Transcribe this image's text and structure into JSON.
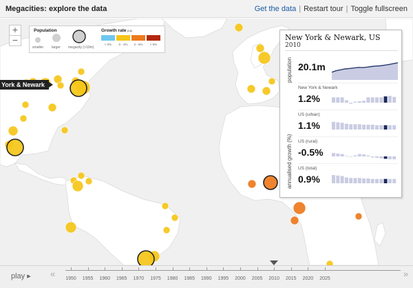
{
  "header": {
    "title": "Megacities: explore the data",
    "links": {
      "get_data": "Get the data",
      "restart": "Restart tour",
      "fullscreen": "Toggle fullscreen"
    },
    "separator": "|"
  },
  "map": {
    "zoom_in": "+",
    "zoom_out": "−",
    "city_tag": "York & Newark",
    "legend": {
      "population_title": "Population",
      "population_labels": [
        "smaller",
        "larger",
        "megacity (>10m)"
      ],
      "growth_title": "Growth rate",
      "growth_unit": "p.a.",
      "growth_bins": [
        {
          "label": "< 0%",
          "color": "#6cc7f0"
        },
        {
          "label": "0 - 3%",
          "color": "#f5c518"
        },
        {
          "label": "3 - 6%",
          "color": "#ed7a1c"
        },
        {
          "label": "> 6%",
          "color": "#b4270e"
        }
      ]
    },
    "cities": [
      {
        "x": 38,
        "y": 121,
        "r": 6,
        "c": "#f5c518"
      },
      {
        "x": 48,
        "y": 119,
        "r": 6,
        "c": "#f5c518"
      },
      {
        "x": 66,
        "y": 121,
        "r": 8,
        "c": "#f5c518"
      },
      {
        "x": 84,
        "y": 115,
        "r": 6,
        "c": "#f5c518"
      },
      {
        "x": 88,
        "y": 124,
        "r": 5,
        "c": "#f5c518"
      },
      {
        "x": 110,
        "y": 118,
        "r": 6,
        "c": "#f5c518"
      },
      {
        "x": 118,
        "y": 104,
        "r": 5,
        "c": "#f5c518"
      },
      {
        "x": 121,
        "y": 127,
        "r": 10,
        "c": "#f5c518"
      },
      {
        "x": 114,
        "y": 128,
        "r": 12,
        "c": "#f5c518",
        "mega": true
      },
      {
        "x": 76,
        "y": 156,
        "r": 6,
        "c": "#f5c518"
      },
      {
        "x": 37,
        "y": 152,
        "r": 5,
        "c": "#f5c518"
      },
      {
        "x": 34,
        "y": 172,
        "r": 5,
        "c": "#f5c518"
      },
      {
        "x": 19,
        "y": 190,
        "r": 7,
        "c": "#f5c518"
      },
      {
        "x": 13,
        "y": 210,
        "r": 6,
        "c": "#f5c518"
      },
      {
        "x": 22,
        "y": 214,
        "r": 12,
        "c": "#f5c518",
        "mega": true
      },
      {
        "x": 94,
        "y": 189,
        "r": 5,
        "c": "#f5c518"
      },
      {
        "x": 118,
        "y": 255,
        "r": 5,
        "c": "#f5c518"
      },
      {
        "x": 107,
        "y": 262,
        "r": 5,
        "c": "#f5c518"
      },
      {
        "x": 129,
        "y": 263,
        "r": 5,
        "c": "#f5c518"
      },
      {
        "x": 113,
        "y": 270,
        "r": 8,
        "c": "#f5c518"
      },
      {
        "x": 103,
        "y": 330,
        "r": 8,
        "c": "#f5c518"
      },
      {
        "x": 240,
        "y": 299,
        "r": 5,
        "c": "#f5c518"
      },
      {
        "x": 254,
        "y": 316,
        "r": 5,
        "c": "#f5c518"
      },
      {
        "x": 242,
        "y": 334,
        "r": 5,
        "c": "#f5c518"
      },
      {
        "x": 224,
        "y": 372,
        "r": 8,
        "c": "#f5c518"
      },
      {
        "x": 212,
        "y": 376,
        "r": 12,
        "c": "#f5c518",
        "mega": true
      },
      {
        "x": 347,
        "y": 40,
        "r": 6,
        "c": "#f5c518"
      },
      {
        "x": 378,
        "y": 70,
        "r": 6,
        "c": "#f5c518"
      },
      {
        "x": 384,
        "y": 84,
        "r": 9,
        "c": "#f5c518"
      },
      {
        "x": 365,
        "y": 129,
        "r": 6,
        "c": "#f5c518"
      },
      {
        "x": 387,
        "y": 132,
        "r": 6,
        "c": "#f5c518"
      },
      {
        "x": 395,
        "y": 118,
        "r": 5,
        "c": "#f5c518"
      },
      {
        "x": 393,
        "y": 265,
        "r": 10,
        "c": "#ed7a1c",
        "mega": true
      },
      {
        "x": 366,
        "y": 267,
        "r": 6,
        "c": "#ed7a1c"
      },
      {
        "x": 435,
        "y": 302,
        "r": 9,
        "c": "#ed7a1c"
      },
      {
        "x": 428,
        "y": 320,
        "r": 6,
        "c": "#ed7a1c"
      },
      {
        "x": 521,
        "y": 314,
        "r": 5,
        "c": "#ed7a1c"
      },
      {
        "x": 479,
        "y": 383,
        "r": 5,
        "c": "#f5c518"
      }
    ]
  },
  "panel": {
    "city": "New York & Newark, US",
    "year": "2010",
    "population_label": "population",
    "population_value": "20.1m",
    "growth_axis_label": "annualised growth (%)",
    "population_series": [
      0.35,
      0.42,
      0.46,
      0.5,
      0.52,
      0.54,
      0.57,
      0.56,
      0.58,
      0.61,
      0.63,
      0.64,
      0.67,
      0.7,
      0.74,
      0.78
    ],
    "rows": [
      {
        "label": "New York & Newark",
        "value": "1.2%",
        "bars": [
          0.55,
          0.55,
          0.55,
          0.25,
          -0.1,
          0.1,
          0.15,
          0.2,
          0.55,
          0.55,
          0.55,
          0.55,
          0.65,
          0.7,
          0.6
        ]
      },
      {
        "label": "US (urban)",
        "value": "1.1%",
        "bars": [
          0.8,
          0.75,
          0.7,
          0.6,
          0.55,
          0.55,
          0.55,
          0.5,
          0.5,
          0.5,
          0.45,
          0.45,
          0.45,
          0.45,
          0.45
        ]
      },
      {
        "label": "US (rural)",
        "value": "-0.5%",
        "bars": [
          0.35,
          0.3,
          0.25,
          0.05,
          -0.05,
          0.1,
          0.25,
          0.2,
          0.1,
          -0.1,
          -0.15,
          -0.2,
          -0.25,
          -0.3,
          -0.3
        ]
      },
      {
        "label": "US (total)",
        "value": "0.9%",
        "bars": [
          0.85,
          0.8,
          0.75,
          0.6,
          0.55,
          0.55,
          0.55,
          0.5,
          0.5,
          0.45,
          0.45,
          0.45,
          0.45,
          0.45,
          0.45
        ]
      }
    ],
    "highlight_index": 12
  },
  "timeline": {
    "play_label": "play ▸",
    "rewind": "«",
    "forward": "»",
    "years": [
      "1950",
      "1955",
      "1960",
      "1965",
      "1970",
      "1975",
      "1980",
      "1985",
      "1990",
      "1995",
      "2000",
      "2005",
      "2010",
      "2015",
      "2020",
      "2025"
    ],
    "current_year": "2010"
  },
  "colors": {
    "land": "#ffffff",
    "ocean": "#efefef",
    "mega_ring": "#222222",
    "series": "#2a3a6e",
    "bar": "#c9cce2",
    "bar_highlight": "#1f2a5c"
  }
}
